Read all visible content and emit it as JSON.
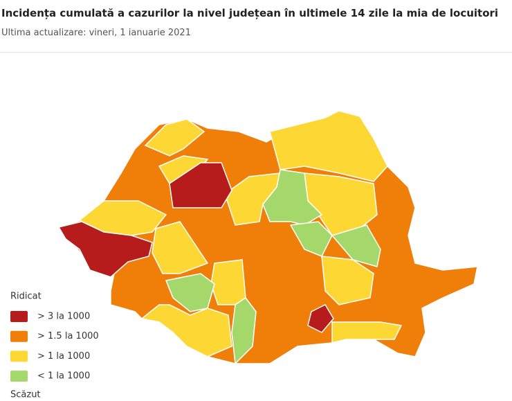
{
  "header": {
    "title": "Incidența cumulată a cazurilor la nivel județean în ultimele 14 zile la mia de locuitori",
    "subtitle": "Ultima actualizare: vineri, 1 ianuarie 2021"
  },
  "legend": {
    "top_label": "Ridicat",
    "items": [
      {
        "label": "> 3 la 1000",
        "color": "#b71c1c"
      },
      {
        "label": "> 1.5 la 1000",
        "color": "#f07f09"
      },
      {
        "label": "> 1 la 1000",
        "color": "#fdd835"
      },
      {
        "label": "< 1 la 1000",
        "color": "#a5d86a"
      }
    ],
    "bottom_label": "Scăzut"
  }
}
